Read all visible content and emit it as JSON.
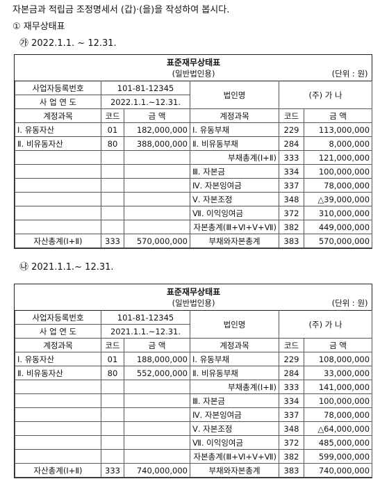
{
  "intro": "자본금과 적립금 조정명세서 (갑)·(을)을 작성하여 봅시다.",
  "section": "① 재무상태표",
  "statements": [
    {
      "period_label": "㉮ 2022.1.1. ~ 12.31.",
      "title": "표준재무상태표",
      "subtitle": "(일반법인용)",
      "unit": "(단위 : 원)",
      "biz_no_label": "사업자등록번호",
      "biz_no": "101-81-12345",
      "year_label": "사 업 연 도",
      "year": "2022.1.1.~12.31.",
      "corp_label": "법인명",
      "corp_name": "(주) 가 나",
      "col_account": "계정과목",
      "col_code": "코드",
      "col_amount": "금 액",
      "rows": [
        [
          "Ⅰ. 유동자산",
          "01",
          "182,000,000",
          "Ⅰ. 유동부채",
          "229",
          "113,000,000"
        ],
        [
          "Ⅱ. 비유동자산",
          "80",
          "388,000,000",
          "Ⅱ. 비유동부채",
          "284",
          "8,000,000"
        ],
        [
          "",
          "",
          "",
          "부채총계(Ⅰ+Ⅱ)",
          "333",
          "121,000,000"
        ],
        [
          "",
          "",
          "",
          "Ⅲ. 자본금",
          "334",
          "100,000,000"
        ],
        [
          "",
          "",
          "",
          "Ⅳ. 자본잉여금",
          "337",
          "78,000,000"
        ],
        [
          "",
          "",
          "",
          "Ⅴ. 자본조정",
          "348",
          "△39,000,000"
        ],
        [
          "",
          "",
          "",
          "Ⅶ. 이익잉여금",
          "372",
          "310,000,000"
        ],
        [
          "",
          "",
          "",
          "자본총계(Ⅲ+Ⅵ+Ⅴ+Ⅶ)",
          "382",
          "449,000,000"
        ]
      ],
      "total": [
        "자산총계(Ⅰ+Ⅱ)",
        "333",
        "570,000,000",
        "부채와자본총계",
        "383",
        "570,000,000"
      ]
    },
    {
      "period_label": "㉯ 2021.1.1.~ 12.31.",
      "title": "표준재무상태표",
      "subtitle": "(일반법인용)",
      "unit": "(단위 : 원)",
      "biz_no_label": "사업자등록번호",
      "biz_no": "101-81-12345",
      "year_label": "사 업 연 도",
      "year": "2021.1.1.~12.31.",
      "corp_label": "법인명",
      "corp_name": "(주) 가 나",
      "col_account": "계정과목",
      "col_code": "코드",
      "col_amount": "금 액",
      "rows": [
        [
          "Ⅰ. 유동자산",
          "01",
          "188,000,000",
          "Ⅰ. 유동부채",
          "229",
          "108,000,000"
        ],
        [
          "Ⅱ. 비유동자산",
          "80",
          "552,000,000",
          "Ⅱ. 비유동부채",
          "284",
          "33,000,000"
        ],
        [
          "",
          "",
          "",
          "부채총계(Ⅰ+Ⅱ)",
          "333",
          "141,000,000"
        ],
        [
          "",
          "",
          "",
          "Ⅲ. 자본금",
          "334",
          "100,000,000"
        ],
        [
          "",
          "",
          "",
          "Ⅳ. 자본잉여금",
          "337",
          "78,000,000"
        ],
        [
          "",
          "",
          "",
          "Ⅴ. 자본조정",
          "348",
          "△64,000,000"
        ],
        [
          "",
          "",
          "",
          "Ⅶ. 이익잉여금",
          "372",
          "485,000,000"
        ],
        [
          "",
          "",
          "",
          "자본총계(Ⅲ+Ⅵ+Ⅴ+Ⅶ)",
          "382",
          "599,000,000"
        ]
      ],
      "total": [
        "자산총계(Ⅰ+Ⅱ)",
        "333",
        "740,000,000",
        "부채와자본총계",
        "383",
        "740,000,000"
      ]
    }
  ]
}
